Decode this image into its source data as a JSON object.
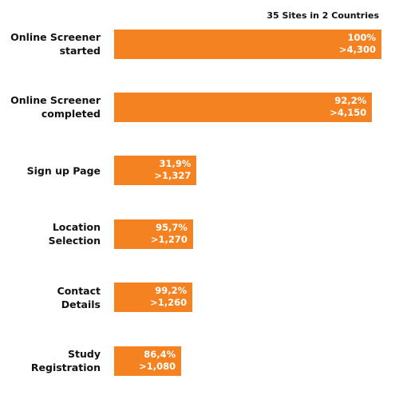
{
  "chart_data": {
    "type": "bar",
    "orientation": "horizontal",
    "subtitle": "35 Sites in 2 Countries",
    "categories": [
      "Online Screener\nstarted",
      "Online Screener\ncompleted",
      "Sign up Page",
      "Location\nSelection",
      "Contact\nDetails",
      "Study\nRegistration"
    ],
    "values": [
      4300,
      4150,
      1327,
      1270,
      1260,
      1080
    ],
    "value_labels": [
      ">4,300",
      ">4,150",
      ">1,327",
      ">1,270",
      ">1,260",
      ">1,080"
    ],
    "percent_values": [
      100,
      92.2,
      31.9,
      95.7,
      99.2,
      86.4
    ],
    "percent_labels": [
      "100%",
      "92,2%",
      "31,9%",
      "95,7%",
      "99,2%",
      "86,4%"
    ],
    "color": "#f58220"
  }
}
